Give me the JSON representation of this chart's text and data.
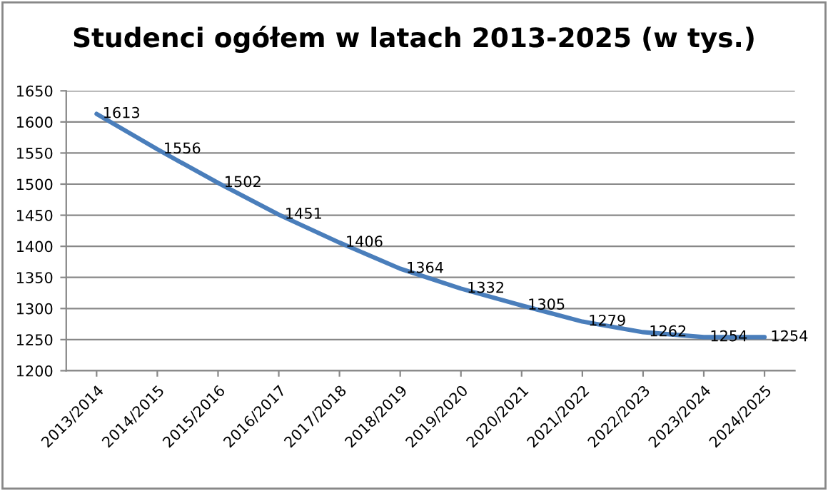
{
  "chart_data": {
    "type": "line",
    "title": "Studenci ogółem w latach 2013-2025 (w tys.)",
    "categories": [
      "2013/2014",
      "2014/2015",
      "2015/2016",
      "2016/2017",
      "2017/2018",
      "2018/2019",
      "2019/2020",
      "2020/2021",
      "2021/2022",
      "2022/2023",
      "2023/2024",
      "2024/2025"
    ],
    "series": [
      {
        "color": "#4a7ebb",
        "values": [
          1613,
          1556,
          1502,
          1451,
          1406,
          1364,
          1332,
          1305,
          1279,
          1262,
          1254,
          1254
        ]
      }
    ],
    "ylim": [
      1200,
      1650
    ],
    "yticks": [
      1200,
      1250,
      1300,
      1350,
      1400,
      1450,
      1500,
      1550,
      1600,
      1650
    ],
    "grid": "y",
    "data_labels": true,
    "marker": "none",
    "line_style": "solid",
    "legend": false
  }
}
